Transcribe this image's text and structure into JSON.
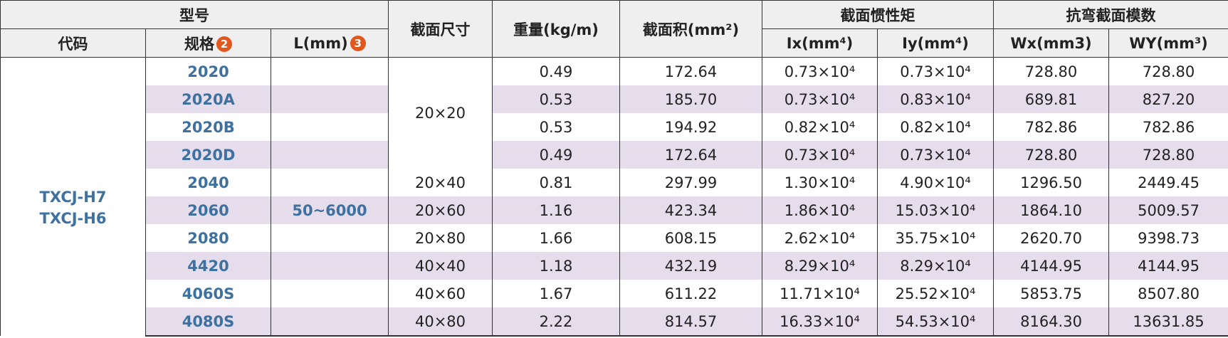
{
  "header": {
    "group_model": "型号",
    "code": "代码",
    "spec": "规格",
    "spec_badge": "2",
    "length": "L(mm)",
    "length_badge": "3",
    "section_size": "截面尺寸",
    "weight": "重量(kg/m)",
    "area": "截面积(mm²)",
    "inertia": "截面惯性矩",
    "ix": "Ix(mm⁴)",
    "iy": "Iy(mm⁴)",
    "modulus": "抗弯截面模数",
    "wx": "Wx(mm3)",
    "wy": "WY(mm³)"
  },
  "code": [
    "TXCJ-H7",
    "TXCJ-H6"
  ],
  "length": "50~6000",
  "rows": [
    {
      "spec": "2020",
      "size": "20×20",
      "weight": "0.49",
      "area": "172.64",
      "ix": "0.73×10⁴",
      "iy": "0.73×10⁴",
      "wx": "728.80",
      "wy": "728.80"
    },
    {
      "spec": "2020A",
      "weight": "0.53",
      "area": "185.70",
      "ix": "0.73×10⁴",
      "iy": "0.83×10⁴",
      "wx": "689.81",
      "wy": "827.20"
    },
    {
      "spec": "2020B",
      "weight": "0.53",
      "area": "194.92",
      "ix": "0.82×10⁴",
      "iy": "0.82×10⁴",
      "wx": "782.86",
      "wy": "782.86"
    },
    {
      "spec": "2020D",
      "weight": "0.49",
      "area": "172.64",
      "ix": "0.73×10⁴",
      "iy": "0.73×10⁴",
      "wx": "728.80",
      "wy": "728.80"
    },
    {
      "spec": "2040",
      "size": "20×40",
      "weight": "0.81",
      "area": "297.99",
      "ix": "1.30×10⁴",
      "iy": "4.90×10⁴",
      "wx": "1296.50",
      "wy": "2449.45"
    },
    {
      "spec": "2060",
      "size": "20×60",
      "weight": "1.16",
      "area": "423.34",
      "ix": "1.86×10⁴",
      "iy": "15.03×10⁴",
      "wx": "1864.10",
      "wy": "5009.57"
    },
    {
      "spec": "2080",
      "size": "20×80",
      "weight": "1.66",
      "area": "608.15",
      "ix": "2.62×10⁴",
      "iy": "35.75×10⁴",
      "wx": "2620.70",
      "wy": "9398.73"
    },
    {
      "spec": "4420",
      "size": "40×40",
      "weight": "1.18",
      "area": "432.19",
      "ix": "8.29×10⁴",
      "iy": "8.29×10⁴",
      "wx": "4144.95",
      "wy": "4144.95"
    },
    {
      "spec": "4060S",
      "size": "40×60",
      "weight": "1.67",
      "area": "611.22",
      "ix": "11.71×10⁴",
      "iy": "25.52×10⁴",
      "wx": "5853.75",
      "wy": "8507.80"
    },
    {
      "spec": "4080S",
      "size": "40×80",
      "weight": "2.22",
      "area": "814.57",
      "ix": "16.33×10⁴",
      "iy": "54.53×10⁴",
      "wx": "8164.30",
      "wy": "13631.85"
    }
  ]
}
